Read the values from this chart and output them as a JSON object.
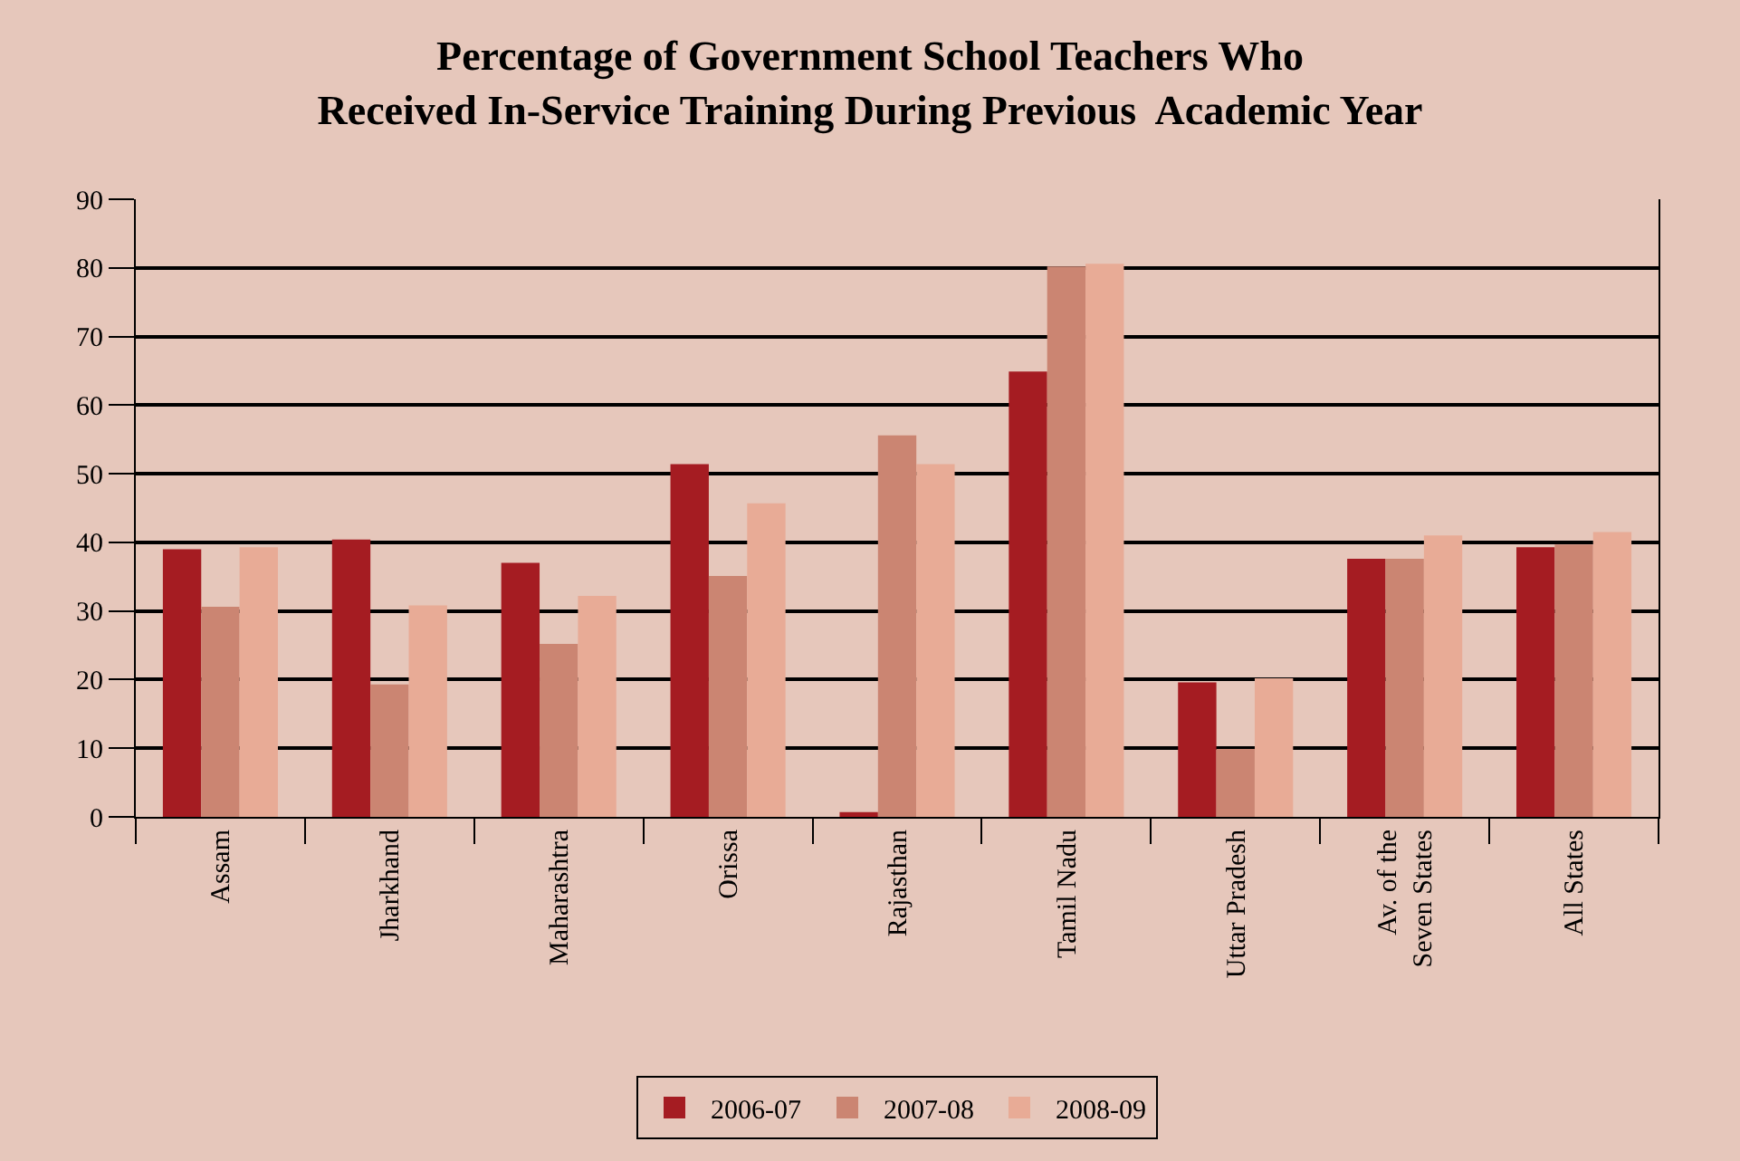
{
  "chart_data": {
    "type": "bar",
    "title": "Percentage of Government School Teachers Who\nReceived In-Service Training During Previous  Academic Year",
    "categories": [
      "Assam",
      "Jharkhand",
      "Maharashtra",
      "Orissa",
      "Rajasthan",
      "Tamil Nadu",
      "Uttar Pradesh",
      "Av. of the\nSeven States",
      "All States"
    ],
    "series": [
      {
        "name": "2006-07",
        "color": "#a51c22",
        "values": [
          39.0,
          40.4,
          37.0,
          51.4,
          0.7,
          64.9,
          19.6,
          37.6,
          39.3
        ]
      },
      {
        "name": "2007-08",
        "color": "#cb8572",
        "values": [
          30.6,
          19.3,
          25.2,
          35.1,
          55.6,
          80.2,
          9.9,
          37.6,
          39.7
        ]
      },
      {
        "name": "2008-09",
        "color": "#e8ab96",
        "values": [
          39.3,
          30.8,
          32.2,
          45.7,
          51.4,
          80.6,
          20.2,
          41.0,
          41.5
        ]
      }
    ],
    "ylim": [
      0,
      90
    ],
    "yticks": [
      0,
      10,
      20,
      30,
      40,
      50,
      60,
      70,
      80,
      90
    ],
    "grid": "y",
    "legend": "bottom"
  }
}
